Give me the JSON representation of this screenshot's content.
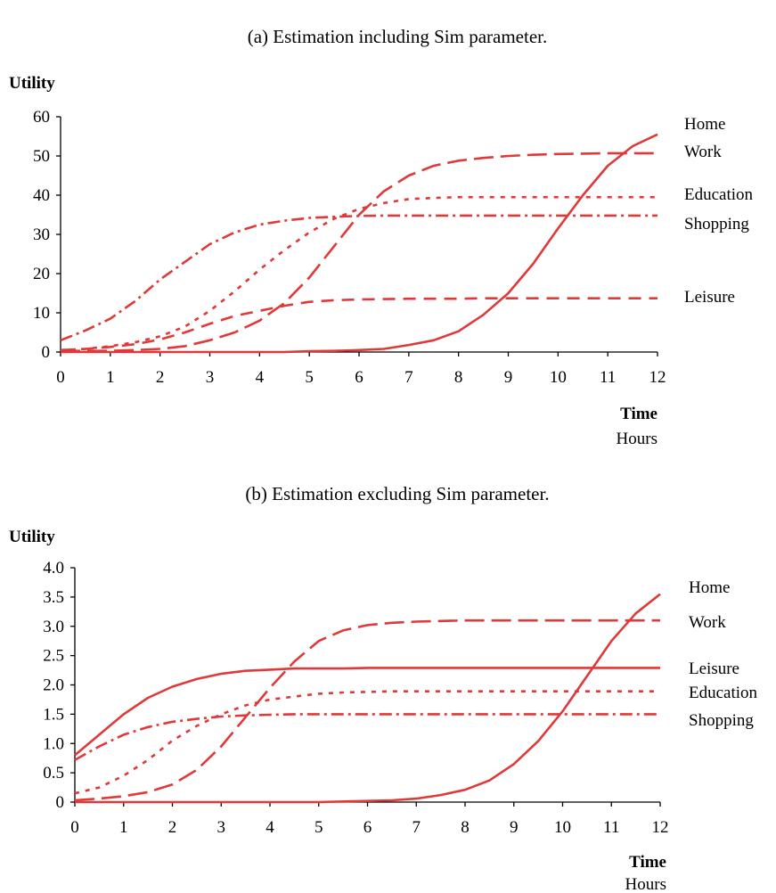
{
  "chart_data": [
    {
      "type": "line",
      "title": "(a) Estimation including Sim parameter.",
      "ylabel": "Utility",
      "xlabel": "Time",
      "xunit": "Hours",
      "xlim": [
        0,
        12
      ],
      "ylim": [
        0,
        60
      ],
      "xticks": [
        "0",
        "1",
        "2",
        "3",
        "4",
        "5",
        "6",
        "7",
        "8",
        "9",
        "10",
        "11",
        "12"
      ],
      "yticks": [
        "0",
        "10",
        "20",
        "30",
        "40",
        "50",
        "60"
      ],
      "color": "#e0393a",
      "series": [
        {
          "name": "Home",
          "style": "solid",
          "x": [
            0,
            0.5,
            1,
            1.5,
            2,
            2.5,
            3,
            3.5,
            4,
            4.5,
            5,
            5.5,
            6,
            6.5,
            7,
            7.5,
            8,
            8.5,
            9,
            9.5,
            10,
            10.5,
            11,
            11.5,
            12
          ],
          "y": [
            0,
            0,
            0,
            0,
            0,
            0,
            0,
            0,
            0,
            0,
            0.2,
            0.3,
            0.5,
            0.8,
            1.8,
            3,
            5.3,
            9.5,
            15,
            22.5,
            31.5,
            40,
            47.5,
            52.5,
            55.5
          ]
        },
        {
          "name": "Work",
          "style": "longdash",
          "x": [
            0,
            0.5,
            1,
            1.5,
            2,
            2.5,
            3,
            3.5,
            4,
            4.5,
            5,
            5.5,
            6,
            6.5,
            7,
            7.5,
            8,
            8.5,
            9,
            9.5,
            10,
            10.5,
            11,
            11.5,
            12
          ],
          "y": [
            0.3,
            0.3,
            0.3,
            0.5,
            0.8,
            1.5,
            3,
            5,
            8,
            12.5,
            19,
            27,
            35,
            41,
            45,
            47.5,
            48.8,
            49.5,
            50,
            50.3,
            50.5,
            50.6,
            50.7,
            50.7,
            50.7
          ]
        },
        {
          "name": "Education",
          "style": "dot",
          "x": [
            0,
            0.5,
            1,
            1.5,
            2,
            2.5,
            3,
            3.5,
            4,
            4.5,
            5,
            5.5,
            6,
            6.5,
            7,
            7.5,
            8,
            8.5,
            9,
            9.5,
            10,
            10.5,
            11,
            11.5,
            12
          ],
          "y": [
            0.5,
            0.8,
            1.5,
            2.5,
            4,
            6.5,
            10.5,
            15.5,
            21,
            26,
            30.5,
            34,
            36.5,
            38,
            39,
            39.3,
            39.5,
            39.5,
            39.5,
            39.5,
            39.5,
            39.5,
            39.5,
            39.5,
            39.5
          ]
        },
        {
          "name": "Shopping",
          "style": "dashdot",
          "x": [
            0,
            0.5,
            1,
            1.5,
            2,
            2.5,
            3,
            3.5,
            4,
            4.5,
            5,
            5.5,
            6,
            6.5,
            7,
            7.5,
            8,
            8.5,
            9,
            9.5,
            10,
            10.5,
            11,
            11.5,
            12
          ],
          "y": [
            3,
            5.5,
            8.5,
            13,
            18.5,
            23,
            27.5,
            30.5,
            32.5,
            33.5,
            34.2,
            34.5,
            34.7,
            34.8,
            34.8,
            34.8,
            34.8,
            34.8,
            34.8,
            34.8,
            34.8,
            34.8,
            34.8,
            34.8,
            34.8
          ]
        },
        {
          "name": "Leisure",
          "style": "dash",
          "x": [
            0,
            0.5,
            1,
            1.5,
            2,
            2.5,
            3,
            3.5,
            4,
            4.5,
            5,
            5.5,
            6,
            6.5,
            7,
            7.5,
            8,
            8.5,
            9,
            9.5,
            10,
            10.5,
            11,
            11.5,
            12
          ],
          "y": [
            0.5,
            0.8,
            1.3,
            2,
            3.2,
            5,
            7.2,
            9.2,
            10.5,
            11.8,
            12.8,
            13.2,
            13.4,
            13.5,
            13.6,
            13.6,
            13.6,
            13.7,
            13.7,
            13.7,
            13.7,
            13.7,
            13.7,
            13.7,
            13.7
          ]
        }
      ]
    },
    {
      "type": "line",
      "title": "(b) Estimation excluding Sim parameter.",
      "ylabel": "Utility",
      "xlabel": "Time",
      "xunit": "Hours",
      "xlim": [
        0,
        12
      ],
      "ylim": [
        0,
        4
      ],
      "xticks": [
        "0",
        "1",
        "2",
        "3",
        "4",
        "5",
        "6",
        "7",
        "8",
        "9",
        "10",
        "11",
        "12"
      ],
      "yticks": [
        "0",
        "0.5",
        "1.0",
        "1.5",
        "2.0",
        "2.5",
        "3.0",
        "3.5",
        "4.0"
      ],
      "color": "#e0393a",
      "series": [
        {
          "name": "Home",
          "style": "solid",
          "x": [
            0,
            0.5,
            1,
            1.5,
            2,
            2.5,
            3,
            3.5,
            4,
            4.5,
            5,
            5.5,
            6,
            6.5,
            7,
            7.5,
            8,
            8.5,
            9,
            9.5,
            10,
            10.5,
            11,
            11.5,
            12
          ],
          "y": [
            0,
            0,
            0,
            0,
            0,
            0,
            0,
            0,
            0,
            0,
            0,
            0.01,
            0.02,
            0.03,
            0.06,
            0.12,
            0.21,
            0.37,
            0.65,
            1.04,
            1.55,
            2.15,
            2.75,
            3.22,
            3.55
          ]
        },
        {
          "name": "Work",
          "style": "longdash",
          "x": [
            0,
            0.5,
            1,
            1.5,
            2,
            2.5,
            3,
            3.5,
            4,
            4.5,
            5,
            5.5,
            6,
            6.5,
            7,
            7.5,
            8,
            8.5,
            9,
            9.5,
            10,
            10.5,
            11,
            11.5,
            12
          ],
          "y": [
            0.03,
            0.06,
            0.1,
            0.17,
            0.3,
            0.55,
            0.95,
            1.45,
            1.95,
            2.4,
            2.75,
            2.93,
            3.02,
            3.06,
            3.08,
            3.09,
            3.1,
            3.1,
            3.1,
            3.1,
            3.1,
            3.1,
            3.1,
            3.1,
            3.1
          ]
        },
        {
          "name": "Leisure",
          "style": "solid",
          "x": [
            0,
            0.5,
            1,
            1.5,
            2,
            2.5,
            3,
            3.5,
            4,
            4.5,
            5,
            5.5,
            6,
            6.5,
            7,
            7.5,
            8,
            8.5,
            9,
            9.5,
            10,
            10.5,
            11,
            11.5,
            12
          ],
          "y": [
            0.8,
            1.15,
            1.5,
            1.78,
            1.97,
            2.1,
            2.19,
            2.24,
            2.26,
            2.28,
            2.28,
            2.28,
            2.29,
            2.29,
            2.29,
            2.29,
            2.29,
            2.29,
            2.29,
            2.29,
            2.29,
            2.29,
            2.29,
            2.29,
            2.29
          ]
        },
        {
          "name": "Education",
          "style": "dot",
          "x": [
            0,
            0.5,
            1,
            1.5,
            2,
            2.5,
            3,
            3.5,
            4,
            4.5,
            5,
            5.5,
            6,
            6.5,
            7,
            7.5,
            8,
            8.5,
            9,
            9.5,
            10,
            10.5,
            11,
            11.5,
            12
          ],
          "y": [
            0.15,
            0.25,
            0.45,
            0.72,
            1.05,
            1.3,
            1.5,
            1.65,
            1.75,
            1.8,
            1.85,
            1.87,
            1.88,
            1.89,
            1.89,
            1.89,
            1.89,
            1.89,
            1.89,
            1.89,
            1.89,
            1.89,
            1.89,
            1.89,
            1.89
          ]
        },
        {
          "name": "Shopping",
          "style": "dashdot",
          "x": [
            0,
            0.5,
            1,
            1.5,
            2,
            2.5,
            3,
            3.5,
            4,
            4.5,
            5,
            5.5,
            6,
            6.5,
            7,
            7.5,
            8,
            8.5,
            9,
            9.5,
            10,
            10.5,
            11,
            11.5,
            12
          ],
          "y": [
            0.72,
            0.95,
            1.15,
            1.28,
            1.37,
            1.42,
            1.46,
            1.48,
            1.49,
            1.5,
            1.5,
            1.5,
            1.5,
            1.5,
            1.5,
            1.5,
            1.5,
            1.5,
            1.5,
            1.5,
            1.5,
            1.5,
            1.5,
            1.5,
            1.5
          ]
        }
      ]
    }
  ]
}
